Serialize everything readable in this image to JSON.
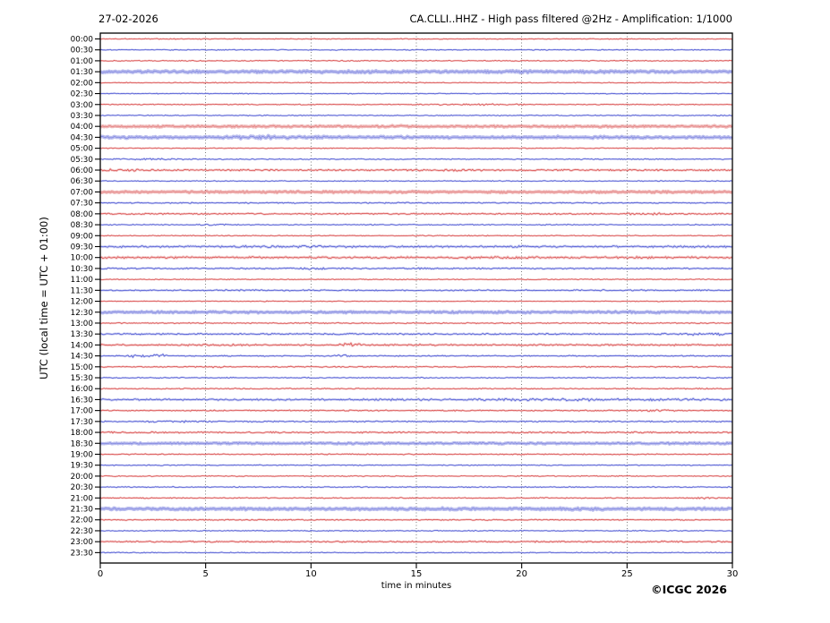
{
  "header": {
    "date": "27-02-2026",
    "title": "CA.CLLI..HHZ - High pass filtered @2Hz - Amplification: 1/1000"
  },
  "footer": {
    "copyright": "©ICGC 2026"
  },
  "colors": {
    "trace_red": "#d84646",
    "trace_blue": "#4650d2",
    "halo_red": "#f0a8a8",
    "halo_blue": "#aab0ee",
    "grid": "#333333",
    "axis": "#000000"
  },
  "chart_data": {
    "type": "line",
    "subtype": "helicorder-seismogram",
    "title": "CA.CLLI..HHZ - High pass filtered @2Hz - Amplification: 1/1000",
    "date": "27-02-2026",
    "xlabel": "time in minutes",
    "ylabel": "UTC (local time = UTC + 01:00)",
    "x_range": [
      0,
      30
    ],
    "x_ticks": [
      0,
      5,
      10,
      15,
      20,
      25,
      30
    ],
    "grid_minutes": [
      5,
      10,
      15,
      20,
      25
    ],
    "row_interval_minutes": 30,
    "rows": [
      {
        "label": "00:00",
        "color": "red",
        "amp": 0.55,
        "light": false,
        "events": []
      },
      {
        "label": "00:30",
        "color": "blue",
        "amp": 0.55,
        "light": false,
        "events": []
      },
      {
        "label": "01:00",
        "color": "red",
        "amp": 0.55,
        "light": false,
        "events": []
      },
      {
        "label": "01:30",
        "color": "blue",
        "amp": 1.2,
        "light": true,
        "events": []
      },
      {
        "label": "02:00",
        "color": "red",
        "amp": 0.55,
        "light": false,
        "events": []
      },
      {
        "label": "02:30",
        "color": "blue",
        "amp": 0.55,
        "light": false,
        "events": []
      },
      {
        "label": "03:00",
        "color": "red",
        "amp": 0.6,
        "light": false,
        "events": [
          {
            "t": 18,
            "a": 1.2,
            "w": 1.2
          }
        ]
      },
      {
        "label": "03:30",
        "color": "blue",
        "amp": 0.55,
        "light": false,
        "events": []
      },
      {
        "label": "04:00",
        "color": "red",
        "amp": 1.0,
        "light": true,
        "events": [
          {
            "t": 14.3,
            "a": 0.8,
            "w": 0.8
          }
        ]
      },
      {
        "label": "04:30",
        "color": "blue",
        "amp": 1.15,
        "light": true,
        "events": [
          {
            "t": 7.5,
            "a": 0.8,
            "w": 1.0
          }
        ]
      },
      {
        "label": "05:00",
        "color": "red",
        "amp": 0.55,
        "light": false,
        "events": []
      },
      {
        "label": "05:30",
        "color": "blue",
        "amp": 0.6,
        "light": false,
        "events": [
          {
            "t": 2.2,
            "a": 1.0,
            "w": 1.2
          }
        ]
      },
      {
        "label": "06:00",
        "color": "red",
        "amp": 0.9,
        "light": false,
        "events": [
          {
            "t": 1,
            "a": 0.9,
            "w": 0.6
          },
          {
            "t": 17,
            "a": 0.8,
            "w": 0.8
          }
        ]
      },
      {
        "label": "06:30",
        "color": "blue",
        "amp": 0.55,
        "light": false,
        "events": []
      },
      {
        "label": "07:00",
        "color": "red",
        "amp": 1.05,
        "light": true,
        "events": []
      },
      {
        "label": "07:30",
        "color": "blue",
        "amp": 0.75,
        "light": false,
        "events": []
      },
      {
        "label": "08:00",
        "color": "red",
        "amp": 0.8,
        "light": false,
        "events": [
          {
            "t": 26.2,
            "a": 1.0,
            "w": 0.9
          }
        ]
      },
      {
        "label": "08:30",
        "color": "blue",
        "amp": 0.6,
        "light": false,
        "events": [
          {
            "t": 5.5,
            "a": 0.9,
            "w": 0.5
          }
        ]
      },
      {
        "label": "09:00",
        "color": "red",
        "amp": 0.55,
        "light": false,
        "events": []
      },
      {
        "label": "09:30",
        "color": "blue",
        "amp": 1.05,
        "light": false,
        "events": [
          {
            "t": 9,
            "a": 0.5,
            "w": 1.5
          }
        ]
      },
      {
        "label": "10:00",
        "color": "red",
        "amp": 1.15,
        "light": false,
        "events": [
          {
            "t": 18.2,
            "a": 0.8,
            "w": 0.7
          }
        ]
      },
      {
        "label": "10:30",
        "color": "blue",
        "amp": 0.85,
        "light": false,
        "events": [
          {
            "t": 10,
            "a": 1.2,
            "w": 0.5
          }
        ]
      },
      {
        "label": "11:00",
        "color": "red",
        "amp": 0.55,
        "light": false,
        "events": []
      },
      {
        "label": "11:30",
        "color": "blue",
        "amp": 0.8,
        "light": false,
        "events": []
      },
      {
        "label": "12:00",
        "color": "red",
        "amp": 0.55,
        "light": false,
        "events": []
      },
      {
        "label": "12:30",
        "color": "blue",
        "amp": 1.05,
        "light": true,
        "events": []
      },
      {
        "label": "13:00",
        "color": "red",
        "amp": 0.65,
        "light": false,
        "events": []
      },
      {
        "label": "13:30",
        "color": "blue",
        "amp": 0.9,
        "light": false,
        "events": [
          {
            "t": 29,
            "a": 0.8,
            "w": 1.0
          }
        ]
      },
      {
        "label": "14:00",
        "color": "red",
        "amp": 1.0,
        "light": false,
        "events": [
          {
            "t": 11.7,
            "a": 1.5,
            "w": 0.4
          }
        ]
      },
      {
        "label": "14:30",
        "color": "blue",
        "amp": 0.7,
        "light": false,
        "events": [
          {
            "t": 1.5,
            "a": 3.2,
            "w": 0.15
          },
          {
            "t": 2.1,
            "a": 2.6,
            "w": 0.12
          },
          {
            "t": 2.55,
            "a": 2.2,
            "w": 0.12
          },
          {
            "t": 3.0,
            "a": 2.8,
            "w": 0.15
          },
          {
            "t": 11.5,
            "a": 2.0,
            "w": 0.18
          }
        ]
      },
      {
        "label": "15:00",
        "color": "red",
        "amp": 0.7,
        "light": false,
        "events": [
          {
            "t": 5.6,
            "a": 1.6,
            "w": 0.25
          }
        ]
      },
      {
        "label": "15:30",
        "color": "blue",
        "amp": 0.6,
        "light": false,
        "events": []
      },
      {
        "label": "16:00",
        "color": "red",
        "amp": 0.65,
        "light": false,
        "events": []
      },
      {
        "label": "16:30",
        "color": "blue",
        "amp": 1.0,
        "light": false,
        "events": [
          {
            "t": 23,
            "a": 0.7,
            "w": 5
          }
        ]
      },
      {
        "label": "17:00",
        "color": "red",
        "amp": 0.75,
        "light": false,
        "events": [
          {
            "t": 26.5,
            "a": 1.0,
            "w": 0.6
          }
        ]
      },
      {
        "label": "17:30",
        "color": "blue",
        "amp": 0.75,
        "light": false,
        "events": [
          {
            "t": 3.5,
            "a": 1.0,
            "w": 0.7
          }
        ]
      },
      {
        "label": "18:00",
        "color": "red",
        "amp": 0.85,
        "light": false,
        "events": []
      },
      {
        "label": "18:30",
        "color": "blue",
        "amp": 0.95,
        "light": true,
        "events": []
      },
      {
        "label": "19:00",
        "color": "red",
        "amp": 0.65,
        "light": false,
        "events": []
      },
      {
        "label": "19:30",
        "color": "blue",
        "amp": 0.6,
        "light": false,
        "events": []
      },
      {
        "label": "20:00",
        "color": "red",
        "amp": 0.55,
        "light": false,
        "events": []
      },
      {
        "label": "20:30",
        "color": "blue",
        "amp": 0.6,
        "light": false,
        "events": []
      },
      {
        "label": "21:00",
        "color": "red",
        "amp": 0.65,
        "light": false,
        "events": [
          {
            "t": 28.5,
            "a": 1.2,
            "w": 0.7
          }
        ]
      },
      {
        "label": "21:30",
        "color": "blue",
        "amp": 1.2,
        "light": true,
        "events": []
      },
      {
        "label": "22:00",
        "color": "red",
        "amp": 0.7,
        "light": false,
        "events": []
      },
      {
        "label": "22:30",
        "color": "blue",
        "amp": 0.55,
        "light": false,
        "events": []
      },
      {
        "label": "23:00",
        "color": "red",
        "amp": 0.85,
        "light": false,
        "events": []
      },
      {
        "label": "23:30",
        "color": "blue",
        "amp": 0.55,
        "light": false,
        "events": []
      }
    ]
  }
}
